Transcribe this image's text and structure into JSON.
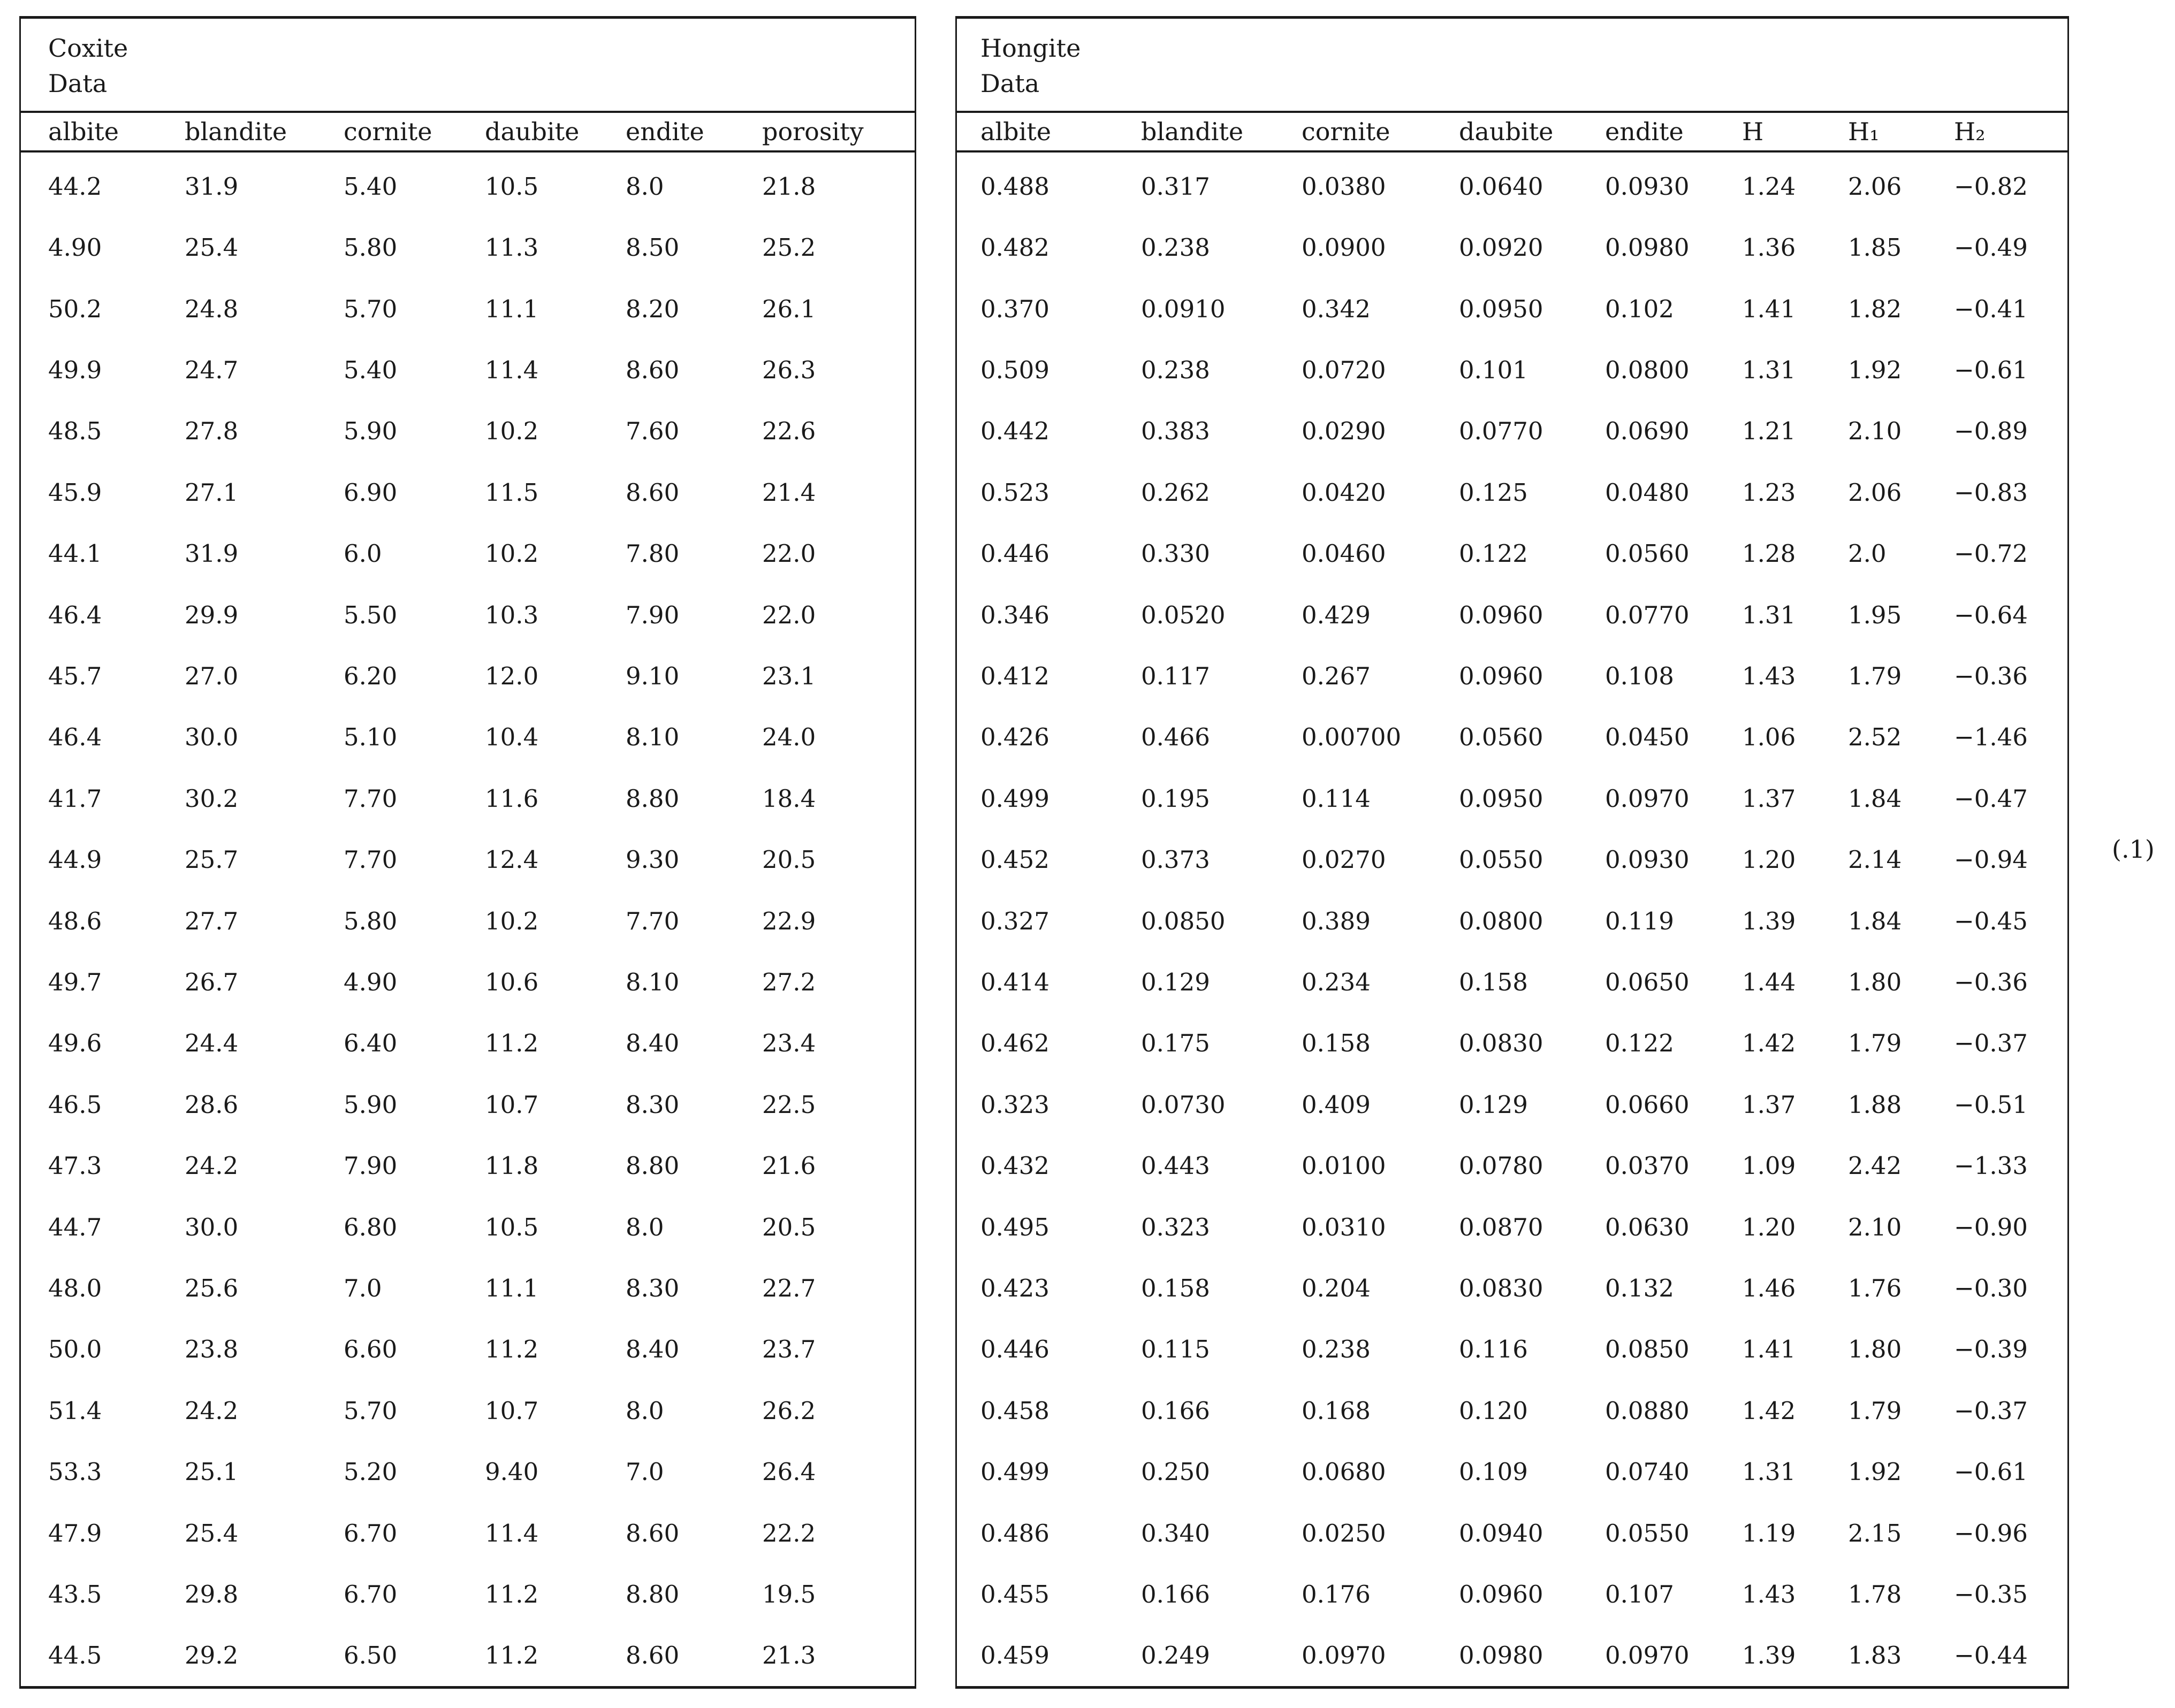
{
  "page": {
    "equation_label": "(.1)"
  },
  "left_table": {
    "title_line1": "Coxite",
    "title_line2": "Data",
    "columns": [
      "albite",
      "blandite",
      "cornite",
      "daubite",
      "endite",
      "porosity"
    ],
    "rows": [
      [
        "44.2",
        "31.9",
        "5.40",
        "10.5",
        "8.0",
        "21.8"
      ],
      [
        "4.90",
        "25.4",
        "5.80",
        "11.3",
        "8.50",
        "25.2"
      ],
      [
        "50.2",
        "24.8",
        "5.70",
        "11.1",
        "8.20",
        "26.1"
      ],
      [
        "49.9",
        "24.7",
        "5.40",
        "11.4",
        "8.60",
        "26.3"
      ],
      [
        "48.5",
        "27.8",
        "5.90",
        "10.2",
        "7.60",
        "22.6"
      ],
      [
        "45.9",
        "27.1",
        "6.90",
        "11.5",
        "8.60",
        "21.4"
      ],
      [
        "44.1",
        "31.9",
        "6.0",
        "10.2",
        "7.80",
        "22.0"
      ],
      [
        "46.4",
        "29.9",
        "5.50",
        "10.3",
        "7.90",
        "22.0"
      ],
      [
        "45.7",
        "27.0",
        "6.20",
        "12.0",
        "9.10",
        "23.1"
      ],
      [
        "46.4",
        "30.0",
        "5.10",
        "10.4",
        "8.10",
        "24.0"
      ],
      [
        "41.7",
        "30.2",
        "7.70",
        "11.6",
        "8.80",
        "18.4"
      ],
      [
        "44.9",
        "25.7",
        "7.70",
        "12.4",
        "9.30",
        "20.5"
      ],
      [
        "48.6",
        "27.7",
        "5.80",
        "10.2",
        "7.70",
        "22.9"
      ],
      [
        "49.7",
        "26.7",
        "4.90",
        "10.6",
        "8.10",
        "27.2"
      ],
      [
        "49.6",
        "24.4",
        "6.40",
        "11.2",
        "8.40",
        "23.4"
      ],
      [
        "46.5",
        "28.6",
        "5.90",
        "10.7",
        "8.30",
        "22.5"
      ],
      [
        "47.3",
        "24.2",
        "7.90",
        "11.8",
        "8.80",
        "21.6"
      ],
      [
        "44.7",
        "30.0",
        "6.80",
        "10.5",
        "8.0",
        "20.5"
      ],
      [
        "48.0",
        "25.6",
        "7.0",
        "11.1",
        "8.30",
        "22.7"
      ],
      [
        "50.0",
        "23.8",
        "6.60",
        "11.2",
        "8.40",
        "23.7"
      ],
      [
        "51.4",
        "24.2",
        "5.70",
        "10.7",
        "8.0",
        "26.2"
      ],
      [
        "53.3",
        "25.1",
        "5.20",
        "9.40",
        "7.0",
        "26.4"
      ],
      [
        "47.9",
        "25.4",
        "6.70",
        "11.4",
        "8.60",
        "22.2"
      ],
      [
        "43.5",
        "29.8",
        "6.70",
        "11.2",
        "8.80",
        "19.5"
      ],
      [
        "44.5",
        "29.2",
        "6.50",
        "11.2",
        "8.60",
        "21.3"
      ]
    ]
  },
  "right_table": {
    "title_line1": "Hongite",
    "title_line2": "Data",
    "columns": [
      "albite",
      "blandite",
      "cornite",
      "daubite",
      "endite",
      "H",
      "H₁",
      "H₂"
    ],
    "rows": [
      [
        "0.488",
        "0.317",
        "0.0380",
        "0.0640",
        "0.0930",
        "1.24",
        "2.06",
        "−0.82"
      ],
      [
        "0.482",
        "0.238",
        "0.0900",
        "0.0920",
        "0.0980",
        "1.36",
        "1.85",
        "−0.49"
      ],
      [
        "0.370",
        "0.0910",
        "0.342",
        "0.0950",
        "0.102",
        "1.41",
        "1.82",
        "−0.41"
      ],
      [
        "0.509",
        "0.238",
        "0.0720",
        "0.101",
        "0.0800",
        "1.31",
        "1.92",
        "−0.61"
      ],
      [
        "0.442",
        "0.383",
        "0.0290",
        "0.0770",
        "0.0690",
        "1.21",
        "2.10",
        "−0.89"
      ],
      [
        "0.523",
        "0.262",
        "0.0420",
        "0.125",
        "0.0480",
        "1.23",
        "2.06",
        "−0.83"
      ],
      [
        "0.446",
        "0.330",
        "0.0460",
        "0.122",
        "0.0560",
        "1.28",
        "2.0",
        "−0.72"
      ],
      [
        "0.346",
        "0.0520",
        "0.429",
        "0.0960",
        "0.0770",
        "1.31",
        "1.95",
        "−0.64"
      ],
      [
        "0.412",
        "0.117",
        "0.267",
        "0.0960",
        "0.108",
        "1.43",
        "1.79",
        "−0.36"
      ],
      [
        "0.426",
        "0.466",
        "0.00700",
        "0.0560",
        "0.0450",
        "1.06",
        "2.52",
        "−1.46"
      ],
      [
        "0.499",
        "0.195",
        "0.114",
        "0.0950",
        "0.0970",
        "1.37",
        "1.84",
        "−0.47"
      ],
      [
        "0.452",
        "0.373",
        "0.0270",
        "0.0550",
        "0.0930",
        "1.20",
        "2.14",
        "−0.94"
      ],
      [
        "0.327",
        "0.0850",
        "0.389",
        "0.0800",
        "0.119",
        "1.39",
        "1.84",
        "−0.45"
      ],
      [
        "0.414",
        "0.129",
        "0.234",
        "0.158",
        "0.0650",
        "1.44",
        "1.80",
        "−0.36"
      ],
      [
        "0.462",
        "0.175",
        "0.158",
        "0.0830",
        "0.122",
        "1.42",
        "1.79",
        "−0.37"
      ],
      [
        "0.323",
        "0.0730",
        "0.409",
        "0.129",
        "0.0660",
        "1.37",
        "1.88",
        "−0.51"
      ],
      [
        "0.432",
        "0.443",
        "0.0100",
        "0.0780",
        "0.0370",
        "1.09",
        "2.42",
        "−1.33"
      ],
      [
        "0.495",
        "0.323",
        "0.0310",
        "0.0870",
        "0.0630",
        "1.20",
        "2.10",
        "−0.90"
      ],
      [
        "0.423",
        "0.158",
        "0.204",
        "0.0830",
        "0.132",
        "1.46",
        "1.76",
        "−0.30"
      ],
      [
        "0.446",
        "0.115",
        "0.238",
        "0.116",
        "0.0850",
        "1.41",
        "1.80",
        "−0.39"
      ],
      [
        "0.458",
        "0.166",
        "0.168",
        "0.120",
        "0.0880",
        "1.42",
        "1.79",
        "−0.37"
      ],
      [
        "0.499",
        "0.250",
        "0.0680",
        "0.109",
        "0.0740",
        "1.31",
        "1.92",
        "−0.61"
      ],
      [
        "0.486",
        "0.340",
        "0.0250",
        "0.0940",
        "0.0550",
        "1.19",
        "2.15",
        "−0.96"
      ],
      [
        "0.455",
        "0.166",
        "0.176",
        "0.0960",
        "0.107",
        "1.43",
        "1.78",
        "−0.35"
      ],
      [
        "0.459",
        "0.249",
        "0.0970",
        "0.0980",
        "0.0970",
        "1.39",
        "1.83",
        "−0.44"
      ]
    ]
  }
}
